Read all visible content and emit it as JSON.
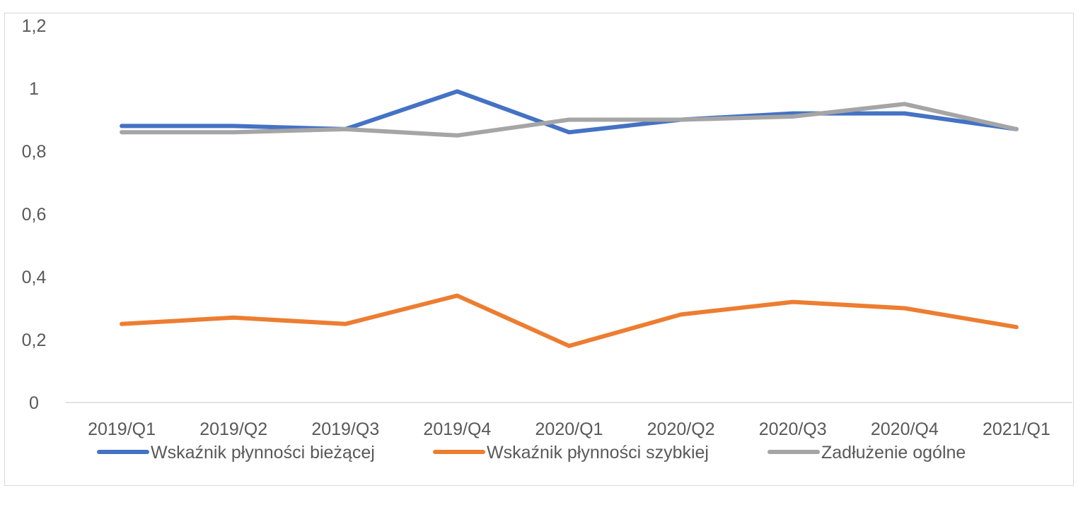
{
  "chart_data": {
    "type": "line",
    "title": "",
    "xlabel": "",
    "ylabel": "",
    "categories": [
      "2019/Q1",
      "2019/Q2",
      "2019/Q3",
      "2019/Q4",
      "2020/Q1",
      "2020/Q2",
      "2020/Q3",
      "2020/Q4",
      "2021/Q1"
    ],
    "ylim": [
      0,
      1.2
    ],
    "yticks": [
      "0",
      "0,2",
      "0,4",
      "0,6",
      "0,8",
      "1",
      "1,2"
    ],
    "grid": false,
    "legend_position": "bottom",
    "series": [
      {
        "name": "Wskaźnik płynności bieżącej",
        "color": "#4472C4",
        "values": [
          0.88,
          0.88,
          0.87,
          0.99,
          0.86,
          0.9,
          0.92,
          0.92,
          0.87
        ]
      },
      {
        "name": "Wskaźnik płynności szybkiej",
        "color": "#ED7D31",
        "values": [
          0.25,
          0.27,
          0.25,
          0.34,
          0.18,
          0.28,
          0.32,
          0.3,
          0.24
        ]
      },
      {
        "name": "Zadłużenie ogólne",
        "color": "#A5A5A5",
        "values": [
          0.86,
          0.86,
          0.87,
          0.85,
          0.9,
          0.9,
          0.91,
          0.95,
          0.87
        ]
      }
    ]
  }
}
